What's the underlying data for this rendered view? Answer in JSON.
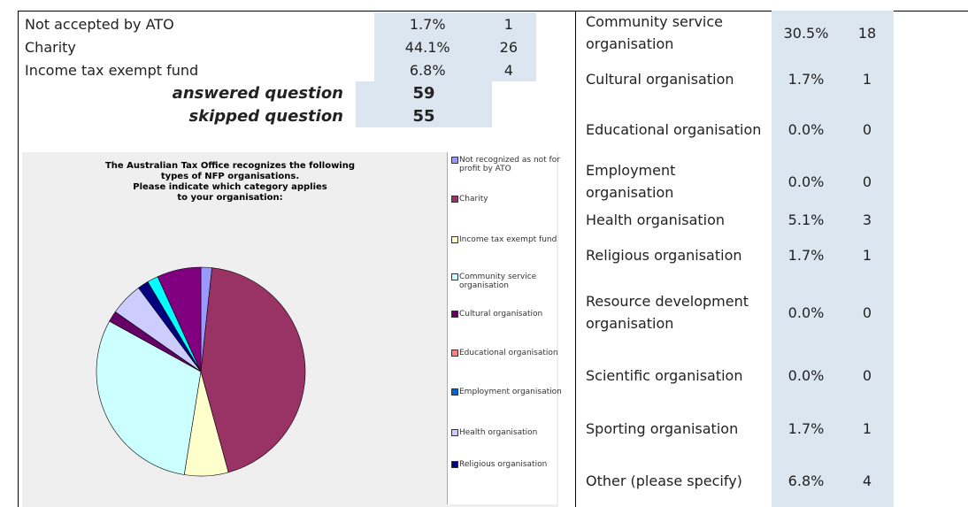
{
  "left_table": {
    "rows": [
      [
        "Not accepted by ATO",
        "1.7%",
        "1"
      ],
      [
        "Charity",
        "44.1%",
        "26"
      ],
      [
        "Income tax exempt fund",
        "6.8%",
        "4"
      ]
    ]
  },
  "summary": {
    "rows": [
      [
        "answered question",
        "59"
      ],
      [
        "skipped question",
        "55"
      ]
    ]
  },
  "chart_data": {
    "type": "pie",
    "title": [
      "The Australian Tax Office recognizes the following",
      "types of NFP organisations.",
      "Please indicate which category applies",
      "to your organisation:"
    ],
    "categories": [
      "Not recognized as not for profit by ATO",
      "Charity",
      "Income tax exempt fund",
      "Community service organisation",
      "Cultural organisation",
      "Educational organisation",
      "Employment organisation",
      "Health organisation",
      "Religious organisation",
      null,
      null,
      null,
      null
    ],
    "values": [
      1.7,
      44.1,
      6.8,
      30.5,
      1.7,
      0,
      0,
      5.1,
      1.7,
      0,
      0,
      1.7,
      6.8
    ],
    "colors": [
      "#9999ff",
      "#993366",
      "#ffffcc",
      "#ccffff",
      "#660066",
      "#ff8080",
      "#0066cc",
      "#ccccff",
      "#000080",
      "#ff00ff",
      "#ffff00",
      "#00ffff",
      "#800080"
    ]
  },
  "right_table": {
    "rows": [
      [
        "Community service organisation",
        "30.5%",
        "18"
      ],
      [
        "Cultural organisation",
        "1.7%",
        "1"
      ],
      [
        "Educational organisation",
        "0.0%",
        "0"
      ],
      [
        "Employment organisation",
        "0.0%",
        "0"
      ],
      [
        "Health organisation",
        "5.1%",
        "3"
      ],
      [
        "Religious organisation",
        "1.7%",
        "1"
      ],
      [
        "Resource development organisation",
        "0.0%",
        "0"
      ],
      [
        "Scientific organisation",
        "0.0%",
        "0"
      ],
      [
        "Sporting organisation",
        "1.7%",
        "1"
      ],
      [
        "Other (please specify)",
        "6.8%",
        "4"
      ]
    ]
  }
}
